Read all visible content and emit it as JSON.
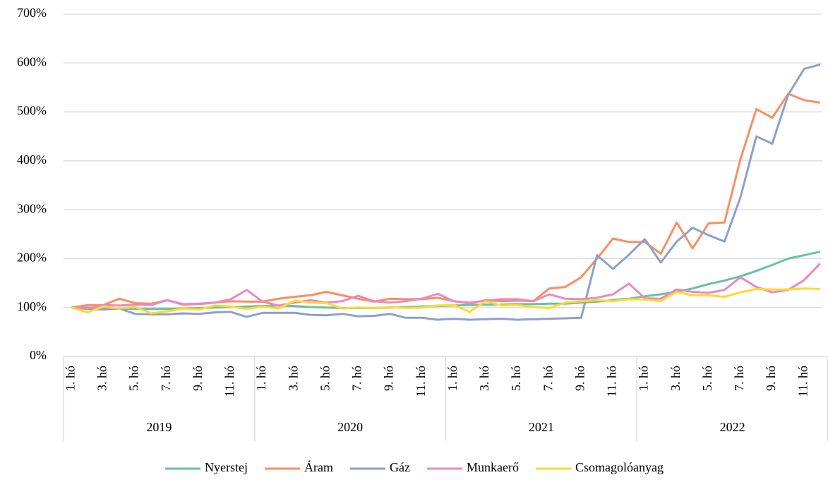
{
  "chart_data": {
    "type": "line",
    "categories": [
      "1. hó",
      null,
      "3. hó",
      null,
      "5. hó",
      null,
      "7. hó",
      null,
      "9. hó",
      null,
      "11. hó",
      null,
      "1. hó",
      null,
      "3. hó",
      null,
      "5. hó",
      null,
      "7. hó",
      null,
      "9. hó",
      null,
      "11. hó",
      null,
      "1. hó",
      null,
      "3. hó",
      null,
      "5. hó",
      null,
      "7. hó",
      null,
      "9. hó",
      null,
      "11. hó",
      null,
      "1. hó",
      null,
      "3. hó",
      null,
      "5. hó",
      null,
      "7. hó",
      null,
      "9. hó",
      null,
      "11. hó",
      null
    ],
    "category_groups": [
      "2019",
      "2020",
      "2021",
      "2022"
    ],
    "ylim": [
      0,
      700
    ],
    "yticks": [
      {
        "value": 0,
        "label": "0%"
      },
      {
        "value": 100,
        "label": "100%"
      },
      {
        "value": 200,
        "label": "200%"
      },
      {
        "value": 300,
        "label": "300%"
      },
      {
        "value": 400,
        "label": "400%"
      },
      {
        "value": 500,
        "label": "500%"
      },
      {
        "value": 600,
        "label": "600%"
      },
      {
        "value": 700,
        "label": "700%"
      }
    ],
    "grid": true,
    "legend": "bottom",
    "series": [
      {
        "name": "Nyerstej",
        "color": "#66c2a5",
        "values": [
          100,
          100,
          99,
          98,
          97,
          97,
          97,
          98,
          99,
          100,
          101,
          102,
          103,
          104,
          103,
          101,
          100,
          99,
          99,
          99,
          100,
          101,
          102,
          103,
          104,
          105,
          106,
          106,
          107,
          107,
          108,
          108,
          110,
          112,
          115,
          118,
          123,
          127,
          132,
          139,
          148,
          155,
          164,
          175,
          187,
          200,
          207,
          214
        ]
      },
      {
        "name": "Áram",
        "color": "#fc8d62",
        "values": [
          100,
          105,
          105,
          118,
          109,
          108,
          115,
          106,
          107,
          110,
          113,
          112,
          112,
          118,
          122,
          125,
          132,
          125,
          118,
          112,
          118,
          117,
          117,
          120,
          113,
          108,
          115,
          113,
          114,
          113,
          139,
          142,
          162,
          200,
          241,
          234,
          234,
          210,
          274,
          221,
          272,
          274,
          403,
          506,
          488,
          537,
          524,
          519
        ]
      },
      {
        "name": "Gáz",
        "color": "#8da0cb",
        "values": [
          100,
          97,
          96,
          98,
          87,
          86,
          86,
          88,
          87,
          90,
          91,
          81,
          89,
          89,
          89,
          85,
          84,
          87,
          82,
          83,
          87,
          79,
          79,
          75,
          77,
          75,
          76,
          77,
          75,
          76,
          77,
          78,
          79,
          207,
          179,
          208,
          240,
          192,
          235,
          263,
          248,
          235,
          325,
          450,
          435,
          535,
          588,
          597
        ]
      },
      {
        "name": "Munkaerő",
        "color": "#e78ac3",
        "values": [
          100,
          98,
          105,
          104,
          106,
          105,
          115,
          107,
          108,
          110,
          117,
          136,
          112,
          104,
          110,
          115,
          110,
          113,
          124,
          113,
          110,
          113,
          118,
          128,
          113,
          110,
          114,
          117,
          117,
          113,
          127,
          118,
          117,
          120,
          127,
          149,
          119,
          118,
          137,
          132,
          130,
          136,
          162,
          142,
          131,
          136,
          156,
          190
        ]
      },
      {
        "name": "Csomagolóanyag",
        "color": "#ffd92f",
        "values": [
          100,
          90,
          102,
          98,
          101,
          88,
          92,
          98,
          96,
          104,
          102,
          97,
          102,
          98,
          114,
          110,
          109,
          98,
          100,
          99,
          101,
          99,
          100,
          104,
          105,
          91,
          113,
          104,
          105,
          101,
          99,
          110,
          113,
          115,
          113,
          117,
          116,
          113,
          132,
          125,
          125,
          122,
          131,
          138,
          137,
          137,
          139,
          138
        ]
      }
    ]
  }
}
